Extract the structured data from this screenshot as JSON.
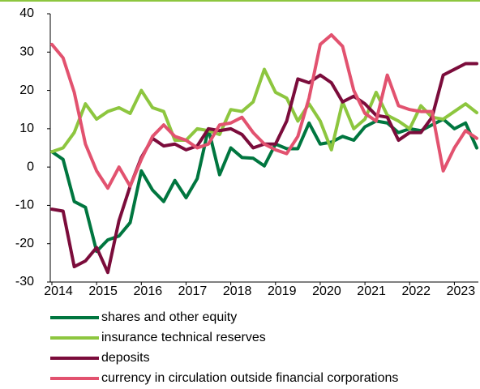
{
  "chart_data": {
    "type": "line",
    "x": [
      2014,
      2014.25,
      2014.5,
      2014.75,
      2015,
      2015.25,
      2015.5,
      2015.75,
      2016,
      2016.25,
      2016.5,
      2016.75,
      2017,
      2017.25,
      2017.5,
      2017.75,
      2018,
      2018.25,
      2018.5,
      2018.75,
      2019,
      2019.25,
      2019.5,
      2019.75,
      2020,
      2020.25,
      2020.5,
      2020.75,
      2021,
      2021.25,
      2021.5,
      2021.75,
      2022,
      2022.25,
      2022.5,
      2022.75,
      2023,
      2023.25,
      2023.5
    ],
    "series": [
      {
        "name": "shares and other equity",
        "color": "#00763f",
        "values": [
          4,
          2,
          -9,
          -10.5,
          -22,
          -19,
          -18,
          -14.5,
          -1,
          -6,
          -9,
          -3.5,
          -8,
          -3,
          10,
          -2,
          5,
          2.5,
          2.3,
          0.3,
          6,
          4.8,
          4.8,
          11.5,
          6,
          6.5,
          8,
          7,
          10.5,
          12,
          11.5,
          9,
          10,
          9.5,
          11,
          12.5,
          10,
          11.5,
          5
        ]
      },
      {
        "name": "insurance technical reserves",
        "color": "#8dc63f",
        "values": [
          4,
          5,
          9,
          16.5,
          12.5,
          14.5,
          15.5,
          14,
          20,
          15.5,
          14.5,
          7,
          7,
          10,
          9.5,
          8.5,
          15,
          14.5,
          17,
          25.5,
          19.5,
          18,
          12,
          16.5,
          12,
          4.5,
          17,
          10,
          12.5,
          19.5,
          13.5,
          12,
          10,
          16,
          13,
          12.5,
          14.5,
          16.5,
          14.2
        ]
      },
      {
        "name": "deposits",
        "color": "#7b0c3b",
        "values": [
          -11,
          -11.5,
          -26,
          -24.5,
          -21,
          -27.5,
          -14,
          -5,
          2.5,
          7.5,
          5.5,
          6,
          4.5,
          5.5,
          10,
          9.5,
          10,
          8.5,
          5,
          6,
          6,
          12,
          23,
          22,
          24,
          22,
          17,
          18.5,
          16.5,
          13.5,
          13,
          7,
          9,
          9,
          13,
          24,
          25.5,
          27,
          27
        ]
      },
      {
        "name": "currency in circulation outside financial corporations",
        "color": "#e2526f",
        "values": [
          32,
          28.5,
          19.5,
          6,
          -1,
          -5.5,
          0,
          -5,
          2,
          8,
          11,
          8,
          7,
          5,
          6,
          11,
          11.5,
          13,
          9,
          6,
          4.5,
          3.5,
          8,
          18,
          32,
          34.5,
          31.5,
          20,
          14,
          12,
          24,
          16,
          15,
          14.5,
          14.5,
          -1,
          5,
          9.5,
          7.5
        ]
      }
    ],
    "xlim": [
      2014,
      2023.5
    ],
    "xticks": [
      2014,
      2015,
      2016,
      2017,
      2018,
      2019,
      2020,
      2021,
      2022,
      2023
    ],
    "ylim": [
      -30,
      40
    ],
    "yticks": [
      -30,
      -20,
      -10,
      0,
      10,
      20,
      30,
      40
    ]
  }
}
